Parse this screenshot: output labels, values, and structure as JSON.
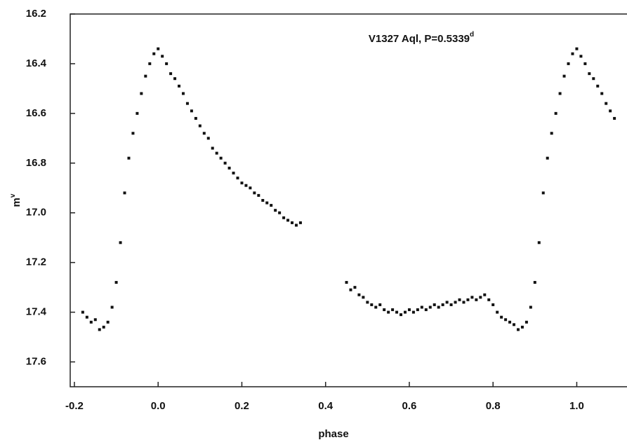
{
  "chart_data": {
    "type": "scatter",
    "title": "V1327 Aql, P=0.5339",
    "title_sup": "d",
    "x_label": "phase",
    "y_label": "m",
    "y_label_sup": "v",
    "xlim": [
      -0.21,
      1.12
    ],
    "ylim": [
      16.2,
      17.7
    ],
    "y_inverted": true,
    "color": "#111111",
    "xticks": [
      -0.2,
      {
        "value": 0,
        "label": "0.0"
      },
      0.2,
      0.4,
      0.6,
      0.8,
      {
        "value": 1,
        "label": "1.0"
      }
    ],
    "yticks": [
      16.2,
      16.4,
      16.6,
      16.8,
      {
        "value": 17,
        "label": "17.0"
      },
      17.2,
      17.4,
      17.6
    ],
    "x": [
      -0.18,
      -0.17,
      -0.16,
      -0.15,
      -0.14,
      -0.13,
      -0.12,
      -0.11,
      -0.1,
      -0.09,
      -0.08,
      -0.07,
      -0.06,
      -0.05,
      -0.04,
      -0.03,
      -0.02,
      -0.01,
      0.0,
      0.01,
      0.02,
      0.03,
      0.04,
      0.05,
      0.06,
      0.07,
      0.08,
      0.09,
      0.1,
      0.11,
      0.12,
      0.13,
      0.14,
      0.15,
      0.16,
      0.17,
      0.18,
      0.19,
      0.2,
      0.21,
      0.22,
      0.23,
      0.24,
      0.25,
      0.26,
      0.27,
      0.28,
      0.29,
      0.3,
      0.31,
      0.32,
      0.33,
      0.34,
      0.45,
      0.46,
      0.47,
      0.48,
      0.49,
      0.5,
      0.51,
      0.52,
      0.53,
      0.54,
      0.55,
      0.56,
      0.57,
      0.58,
      0.59,
      0.6,
      0.61,
      0.62,
      0.63,
      0.64,
      0.65,
      0.66,
      0.67,
      0.68,
      0.69,
      0.7,
      0.71,
      0.72,
      0.73,
      0.74,
      0.75,
      0.76,
      0.77,
      0.78,
      0.79,
      0.8,
      0.81,
      0.82,
      0.83,
      0.84,
      0.85,
      0.86,
      0.87,
      0.88,
      0.89,
      0.9,
      0.91,
      0.92,
      0.93,
      0.94,
      0.95,
      0.96,
      0.97,
      0.98,
      0.99,
      1.0,
      1.01,
      1.02,
      1.03,
      1.04,
      1.05,
      1.06,
      1.07,
      1.08,
      1.09
    ],
    "values": [
      17.4,
      17.42,
      17.44,
      17.43,
      17.47,
      17.46,
      17.44,
      17.38,
      17.28,
      17.12,
      16.92,
      16.78,
      16.68,
      16.6,
      16.52,
      16.45,
      16.4,
      16.36,
      16.34,
      16.37,
      16.4,
      16.44,
      16.46,
      16.49,
      16.52,
      16.56,
      16.59,
      16.62,
      16.65,
      16.68,
      16.7,
      16.74,
      16.76,
      16.78,
      16.8,
      16.82,
      16.84,
      16.86,
      16.88,
      16.89,
      16.9,
      16.92,
      16.93,
      16.95,
      16.96,
      16.97,
      16.99,
      17.0,
      17.02,
      17.03,
      17.04,
      17.05,
      17.04,
      17.28,
      17.31,
      17.3,
      17.33,
      17.34,
      17.36,
      17.37,
      17.38,
      17.37,
      17.39,
      17.4,
      17.39,
      17.4,
      17.41,
      17.4,
      17.39,
      17.4,
      17.39,
      17.38,
      17.39,
      17.38,
      17.37,
      17.38,
      17.37,
      17.36,
      17.37,
      17.36,
      17.35,
      17.36,
      17.35,
      17.34,
      17.35,
      17.34,
      17.33,
      17.35,
      17.37,
      17.4,
      17.42,
      17.43,
      17.44,
      17.45,
      17.47,
      17.46,
      17.44,
      17.38,
      17.28,
      17.12,
      16.92,
      16.78,
      16.68,
      16.6,
      16.52,
      16.45,
      16.4,
      16.36,
      16.34,
      16.37,
      16.4,
      16.44,
      16.46,
      16.49,
      16.52,
      16.56,
      16.59,
      16.62
    ]
  }
}
